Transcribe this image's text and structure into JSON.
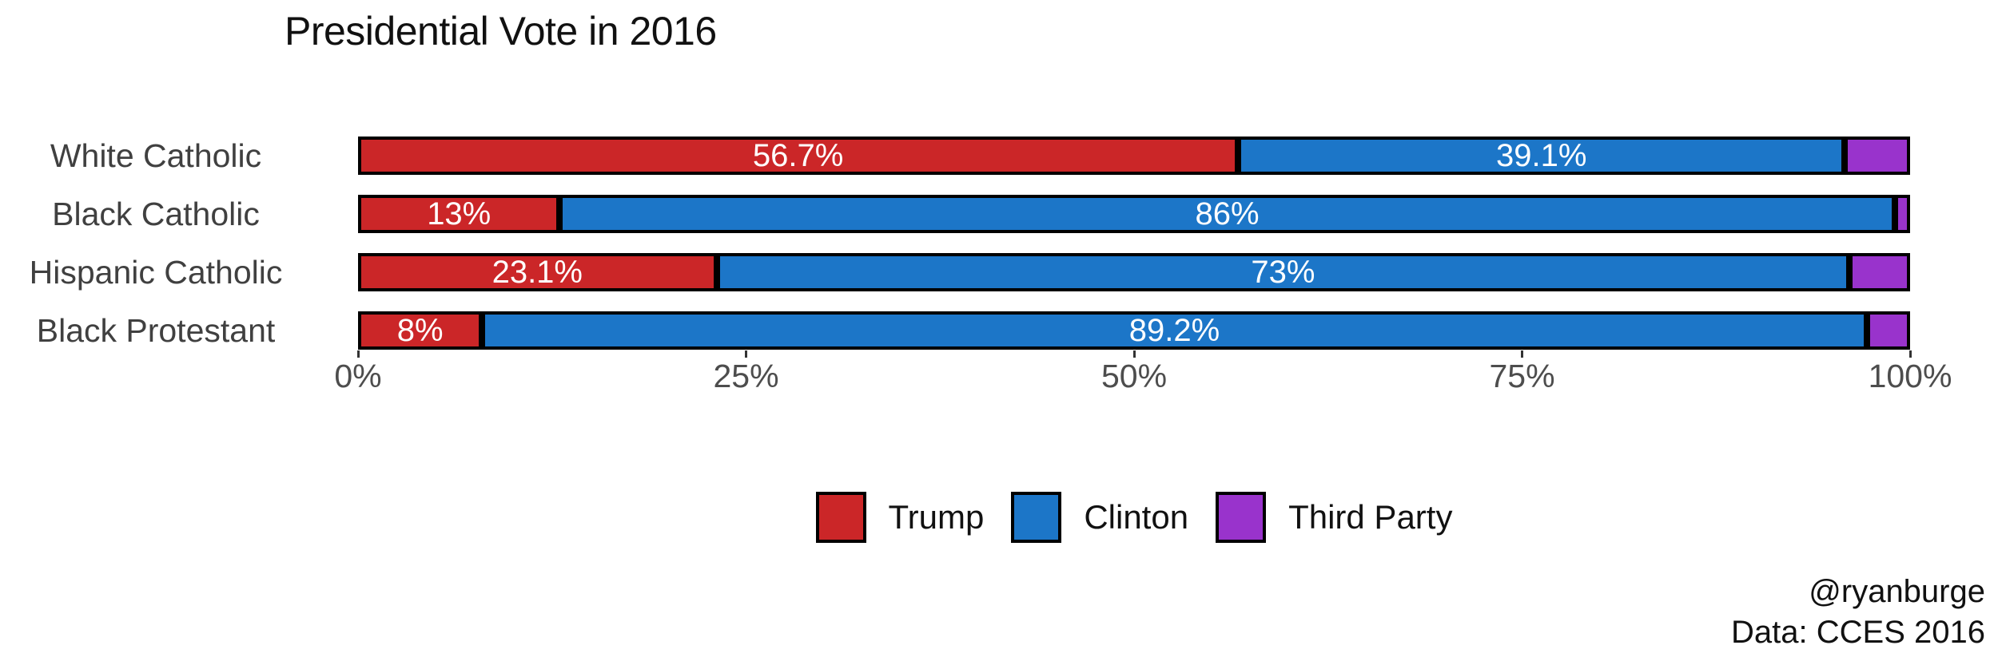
{
  "chart_data": {
    "type": "bar",
    "subtype": "horizontal-stacked",
    "title": "Presidential Vote in 2016",
    "categories": [
      "White Catholic",
      "Black Catholic",
      "Hispanic Catholic",
      "Black Protestant"
    ],
    "series": [
      {
        "name": "Trump",
        "color": "#cb2628",
        "values": [
          56.7,
          13,
          23.1,
          8
        ],
        "labels": [
          "56.7%",
          "13%",
          "23.1%",
          "8%"
        ]
      },
      {
        "name": "Clinton",
        "color": "#1c76c8",
        "values": [
          39.1,
          86,
          73,
          89.2
        ],
        "labels": [
          "39.1%",
          "86%",
          "73%",
          "89.2%"
        ]
      },
      {
        "name": "Third Party",
        "color": "#9933cc",
        "values": [
          4.2,
          1,
          3.9,
          2.8
        ],
        "labels": [
          "",
          "",
          "",
          ""
        ]
      }
    ],
    "x_ticks": [
      "0%",
      "25%",
      "50%",
      "75%",
      "100%"
    ],
    "xlim": [
      0,
      100
    ],
    "xlabel": "",
    "ylabel": "",
    "grid": "off",
    "legend_position": "bottom-center",
    "bar_label_color": "#ffffff",
    "bar_border_color": "#000000"
  },
  "attribution": {
    "line1": "@ryanburge",
    "line2": "Data: CCES 2016"
  }
}
